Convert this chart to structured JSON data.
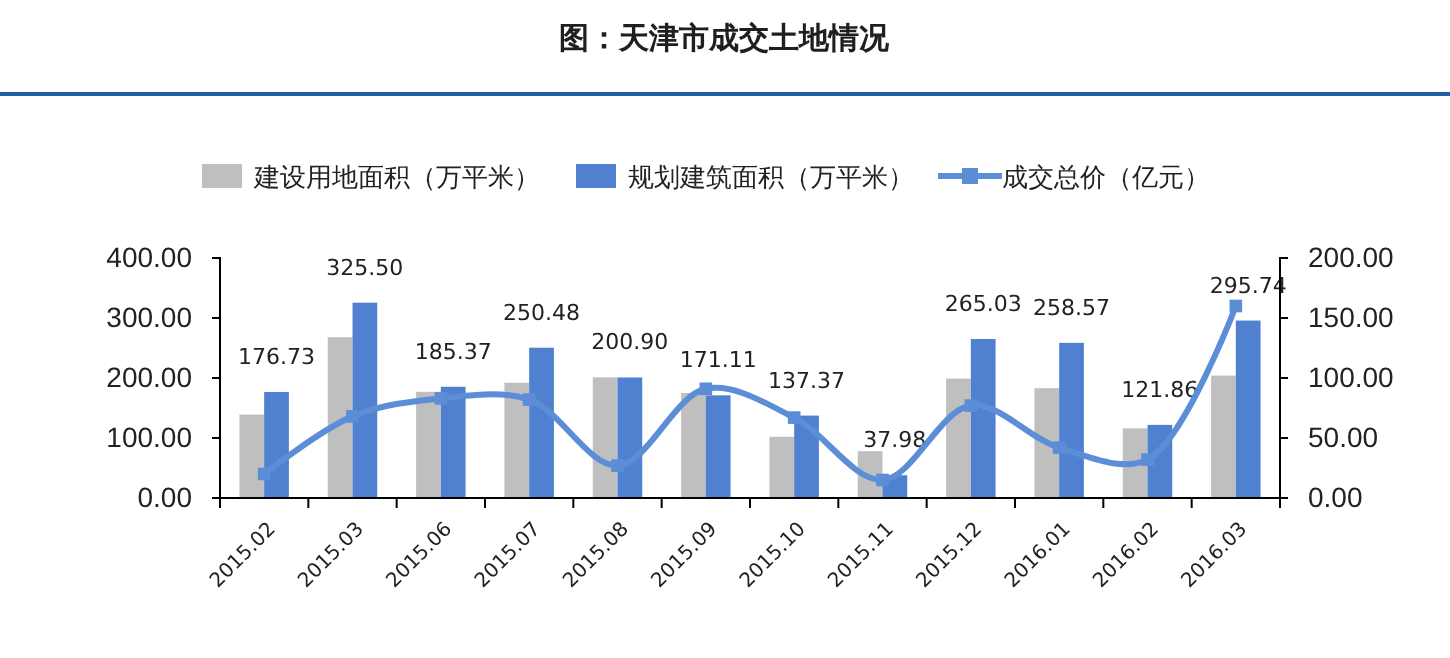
{
  "chart_data": {
    "type": "bar",
    "title": "图：天津市成交土地情况",
    "categories": [
      "2015.02",
      "2015.03",
      "2015.06",
      "2015.07",
      "2015.08",
      "2015.09",
      "2015.10",
      "2015.11",
      "2015.12",
      "2016.01",
      "2016.02",
      "2016.03"
    ],
    "series": [
      {
        "name": "建设用地面积（万平米）",
        "color": "#bfbfbf",
        "values": [
          139,
          268,
          177,
          192,
          201,
          175,
          102,
          78,
          199,
          183,
          116,
          204
        ]
      },
      {
        "name": "规划建筑面积（万平米）",
        "color": "#4f81d0",
        "values": [
          176.73,
          325.5,
          185.37,
          250.48,
          200.9,
          171.11,
          137.37,
          37.98,
          265.03,
          258.57,
          121.86,
          295.74
        ],
        "value_labels": [
          "176.73",
          "325.50",
          "185.37",
          "250.48",
          "200.90",
          "171.11",
          "137.37",
          "37.98",
          "265.03",
          "258.57",
          "121.86",
          "295.74"
        ]
      },
      {
        "name": "成交总价（亿元）",
        "type": "line",
        "axis": "y2",
        "color": "#5b8ed6",
        "marker": "square",
        "values": [
          20,
          68,
          83,
          82,
          27,
          91,
          67,
          15,
          77,
          42,
          32,
          160
        ]
      }
    ],
    "ylim": [
      0,
      400
    ],
    "yticks": [
      {
        "value": 0,
        "label": "0.00"
      },
      {
        "value": 100,
        "label": "100.00"
      },
      {
        "value": 200,
        "label": "200.00"
      },
      {
        "value": 300,
        "label": "300.00"
      },
      {
        "value": 400,
        "label": "400.00"
      }
    ],
    "y2lim": [
      0,
      200
    ],
    "y2ticks": [
      {
        "value": 0,
        "label": "0.00"
      },
      {
        "value": 50,
        "label": "50.00"
      },
      {
        "value": 100,
        "label": "100.00"
      },
      {
        "value": 150,
        "label": "150.00"
      },
      {
        "value": 200,
        "label": "200.00"
      }
    ],
    "legend": "top"
  }
}
